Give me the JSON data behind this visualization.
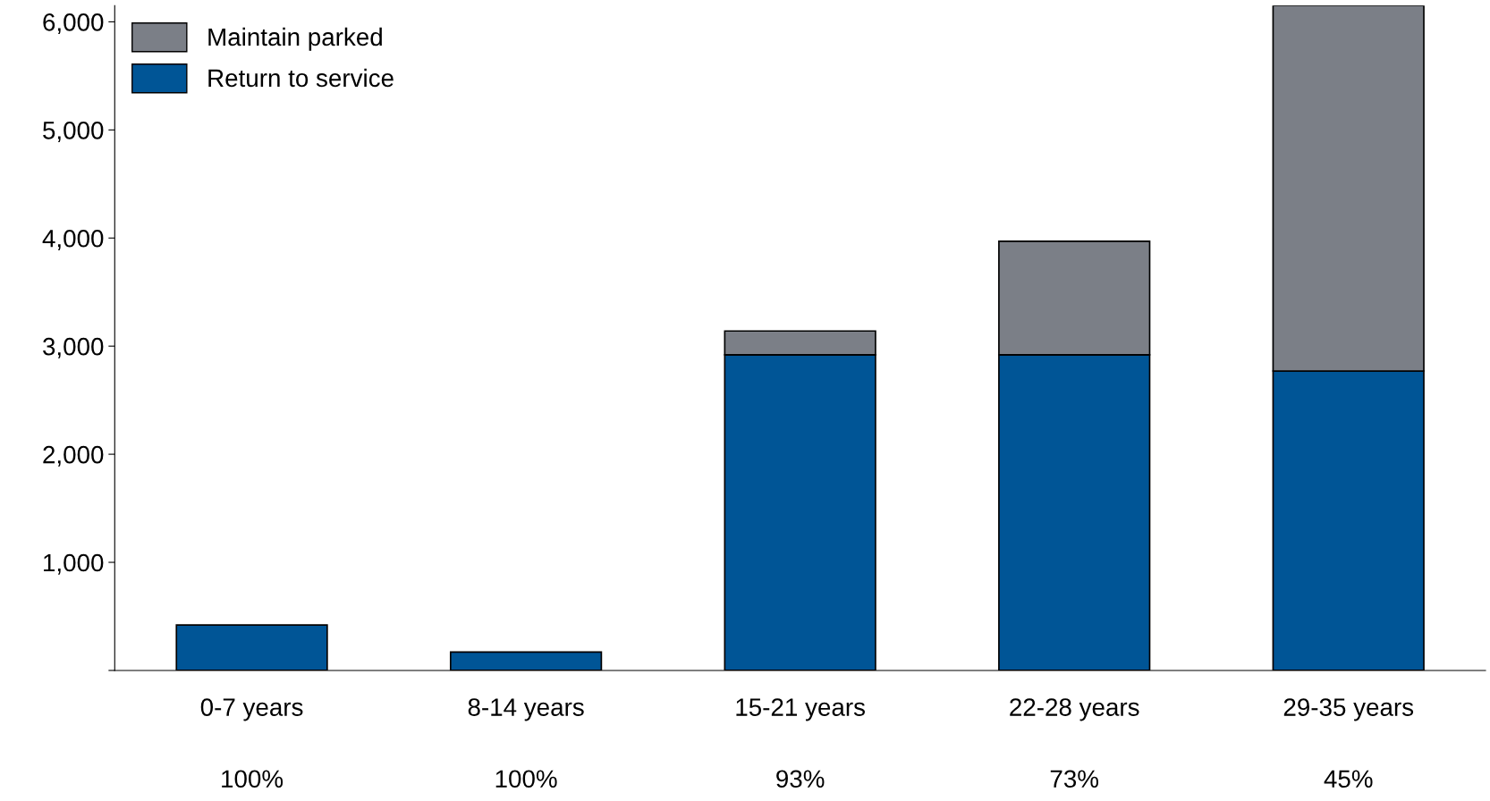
{
  "chart_data": {
    "type": "bar",
    "stacked": true,
    "categories": [
      "0-7 years",
      "8-14 years",
      "15-21 years",
      "22-28 years",
      "29-35 years"
    ],
    "series": [
      {
        "name": "Return to service",
        "color": "#005596",
        "values": [
          420,
          170,
          2920,
          2920,
          2770
        ]
      },
      {
        "name": "Maintain parked",
        "color": "#7b7f87",
        "values": [
          null,
          null,
          220,
          1050,
          3380
        ]
      }
    ],
    "ylim": [
      0,
      6150
    ],
    "yticks": [
      {
        "value": 0,
        "label": null
      },
      {
        "value": 1000,
        "label": "1,000"
      },
      {
        "value": 2000,
        "label": "2,000"
      },
      {
        "value": 3000,
        "label": "3,000"
      },
      {
        "value": 4000,
        "label": "4,000"
      },
      {
        "value": 5000,
        "label": "5,000"
      },
      {
        "value": 6000,
        "label": "6,000"
      }
    ],
    "annotations": [
      "100%",
      "100%",
      "93%",
      "73%",
      "45%"
    ],
    "grid": false,
    "legend": "top left"
  }
}
